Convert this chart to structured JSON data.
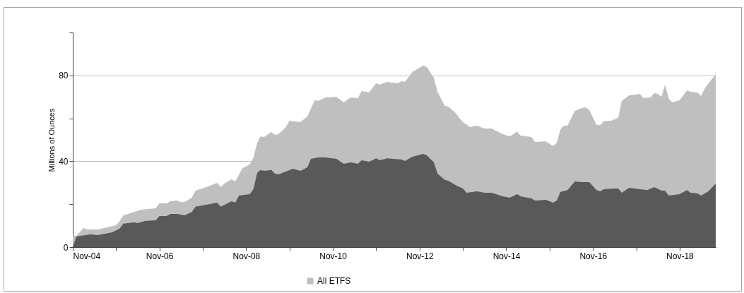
{
  "chart_data": {
    "type": "area",
    "ylabel": "Millions of Ounces",
    "xlim": [
      "2004-11",
      "2019-09"
    ],
    "xticks": [
      {
        "value": "2004-11",
        "label": "Nov-04"
      },
      {
        "value": "2005-11",
        "label": null
      },
      {
        "value": "2006-11",
        "label": "Nov-06"
      },
      {
        "value": "2007-11",
        "label": null
      },
      {
        "value": "2008-11",
        "label": "Nov-08"
      },
      {
        "value": "2009-11",
        "label": null
      },
      {
        "value": "2010-11",
        "label": "Nov-10"
      },
      {
        "value": "2011-11",
        "label": null
      },
      {
        "value": "2012-11",
        "label": "Nov-12"
      },
      {
        "value": "2013-11",
        "label": null
      },
      {
        "value": "2014-11",
        "label": "Nov-14"
      },
      {
        "value": "2015-11",
        "label": null
      },
      {
        "value": "2016-11",
        "label": "Nov-16"
      },
      {
        "value": "2017-11",
        "label": null
      },
      {
        "value": "2018-11",
        "label": "Nov-18"
      }
    ],
    "ylim": [
      0,
      100
    ],
    "yticks": [
      0,
      {
        "value": 20,
        "label": null
      },
      40,
      {
        "value": 60,
        "label": null
      },
      80,
      {
        "value": 100,
        "label": null
      }
    ],
    "grid": "y",
    "legend": "bottom",
    "series": [
      {
        "name": "All ETFS",
        "color": "#bfbfbf",
        "x": [
          "2004-11",
          "2004-12",
          "2005-02",
          "2005-03",
          "2005-06",
          "2005-11",
          "2005-12",
          "2006-01",
          "2006-03",
          "2006-06",
          "2006-10",
          "2006-11",
          "2007-01",
          "2007-02",
          "2007-04",
          "2007-05",
          "2007-06",
          "2007-08",
          "2007-09",
          "2007-12",
          "2008-03",
          "2008-04",
          "2008-05",
          "2008-07",
          "2008-08",
          "2008-10",
          "2008-12",
          "2009-01",
          "2009-02",
          "2009-03",
          "2009-04",
          "2009-06",
          "2009-07",
          "2009-08",
          "2009-10",
          "2009-11",
          "2010-02",
          "2010-04",
          "2010-06",
          "2010-07",
          "2010-09",
          "2010-12",
          "2011-02",
          "2011-04",
          "2011-06",
          "2011-07",
          "2011-09",
          "2011-11",
          "2011-12",
          "2012-02",
          "2012-05",
          "2012-06",
          "2012-07",
          "2012-09",
          "2012-12",
          "2013-01",
          "2013-03",
          "2013-04",
          "2013-06",
          "2013-07",
          "2013-09",
          "2013-10",
          "2013-11",
          "2014-01",
          "2014-03",
          "2014-05",
          "2014-07",
          "2014-10",
          "2014-12",
          "2015-02",
          "2015-03",
          "2015-06",
          "2015-07",
          "2015-10",
          "2015-12",
          "2016-01",
          "2016-02",
          "2016-03",
          "2016-04",
          "2016-06",
          "2016-08",
          "2016-09",
          "2016-10",
          "2016-12",
          "2017-01",
          "2017-02",
          "2017-04",
          "2017-05",
          "2017-06",
          "2017-07",
          "2017-09",
          "2017-12",
          "2018-01",
          "2018-03",
          "2018-04",
          "2018-05",
          "2018-06",
          "2018-07",
          "2018-08",
          "2018-09",
          "2018-11",
          "2019-01",
          "2019-02",
          "2019-04",
          "2019-05",
          "2019-06",
          "2019-09"
        ],
        "values": [
          5.3,
          5.3,
          8.9,
          8.2,
          8.2,
          10.2,
          12.2,
          14.8,
          15.8,
          17.4,
          18.1,
          20.4,
          20.4,
          21.4,
          21.7,
          21,
          21,
          23,
          26.3,
          28,
          29.9,
          28,
          29.6,
          31.6,
          30.6,
          36.8,
          38.5,
          41.8,
          48.4,
          51.6,
          51.3,
          53.6,
          52.3,
          52.6,
          55.9,
          58.9,
          58.2,
          60.9,
          68.4,
          68.1,
          69.7,
          70,
          67.4,
          69.7,
          69.4,
          72.7,
          72,
          76.3,
          75.7,
          77,
          76.3,
          77.3,
          77,
          81.6,
          84.5,
          83.9,
          78.9,
          72.4,
          65.8,
          65.5,
          62.5,
          60.2,
          58.2,
          55.9,
          56.6,
          55.3,
          55.3,
          52.6,
          51.6,
          53.9,
          52,
          51.3,
          49,
          49.3,
          47,
          48.7,
          54.9,
          56.6,
          56.6,
          63.5,
          64.8,
          65.1,
          63.8,
          56.9,
          56.9,
          58.6,
          58.9,
          59.5,
          60.2,
          68.1,
          70.7,
          71.4,
          69.4,
          69.7,
          71.7,
          71.4,
          70,
          75.7,
          69.1,
          67.4,
          68.4,
          73,
          72.4,
          72,
          70.4,
          74,
          80.6
        ]
      },
      {
        "color": "#595959",
        "x": [
          "2004-11",
          "2004-12",
          "2005-01",
          "2005-04",
          "2005-06",
          "2005-10",
          "2005-12",
          "2006-01",
          "2006-04",
          "2006-05",
          "2006-07",
          "2006-10",
          "2006-11",
          "2007-01",
          "2007-02",
          "2007-04",
          "2007-06",
          "2007-08",
          "2007-09",
          "2007-12",
          "2008-03",
          "2008-04",
          "2008-07",
          "2008-08",
          "2008-09",
          "2008-12",
          "2009-01",
          "2009-02",
          "2009-03",
          "2009-04",
          "2009-06",
          "2009-07",
          "2009-08",
          "2009-10",
          "2009-12",
          "2010-02",
          "2010-04",
          "2010-05",
          "2010-07",
          "2010-09",
          "2010-12",
          "2011-02",
          "2011-04",
          "2011-06",
          "2011-07",
          "2011-09",
          "2011-10",
          "2011-11",
          "2011-12",
          "2012-02",
          "2012-06",
          "2012-07",
          "2012-09",
          "2012-12",
          "2013-01",
          "2013-03",
          "2013-04",
          "2013-06",
          "2013-07",
          "2013-09",
          "2013-11",
          "2013-12",
          "2014-03",
          "2014-05",
          "2014-07",
          "2014-10",
          "2014-12",
          "2015-02",
          "2015-03",
          "2015-06",
          "2015-07",
          "2015-10",
          "2015-12",
          "2016-01",
          "2016-02",
          "2016-04",
          "2016-06",
          "2016-08",
          "2016-10",
          "2016-12",
          "2017-01",
          "2017-02",
          "2017-05",
          "2017-06",
          "2017-07",
          "2017-09",
          "2017-12",
          "2018-02",
          "2018-04",
          "2018-06",
          "2018-07",
          "2018-08",
          "2018-11",
          "2019-01",
          "2019-02",
          "2019-04",
          "2019-05",
          "2019-07",
          "2019-09"
        ],
        "values": [
          0,
          4.9,
          5.3,
          5.9,
          5.6,
          6.9,
          8.6,
          10.9,
          11.5,
          11.2,
          12.2,
          12.5,
          14.5,
          14.5,
          15.5,
          15.5,
          14.8,
          16.4,
          18.8,
          19.7,
          20.7,
          18.8,
          21.4,
          20.7,
          24,
          24.7,
          27,
          34.5,
          35.9,
          35.5,
          35.9,
          34.2,
          33.9,
          35.2,
          36.5,
          35.5,
          37.2,
          41.1,
          41.8,
          41.8,
          41.1,
          38.8,
          39.5,
          38.8,
          40.5,
          39.8,
          40.5,
          41.4,
          40.5,
          41.4,
          40.8,
          40.1,
          42.1,
          43.4,
          42.8,
          39.5,
          34.2,
          31.3,
          30.9,
          28.9,
          27.3,
          25.3,
          26,
          25.3,
          25.3,
          23.7,
          23,
          24.7,
          23.7,
          22.7,
          21.7,
          22,
          20.7,
          21.7,
          25.7,
          26.6,
          30.6,
          30.3,
          30.3,
          26.6,
          26,
          27,
          27.3,
          27.3,
          25.3,
          27.6,
          27,
          26.6,
          28,
          26.3,
          26.3,
          24,
          24.7,
          26.6,
          25.3,
          25,
          24,
          26,
          29.6
        ]
      }
    ]
  }
}
